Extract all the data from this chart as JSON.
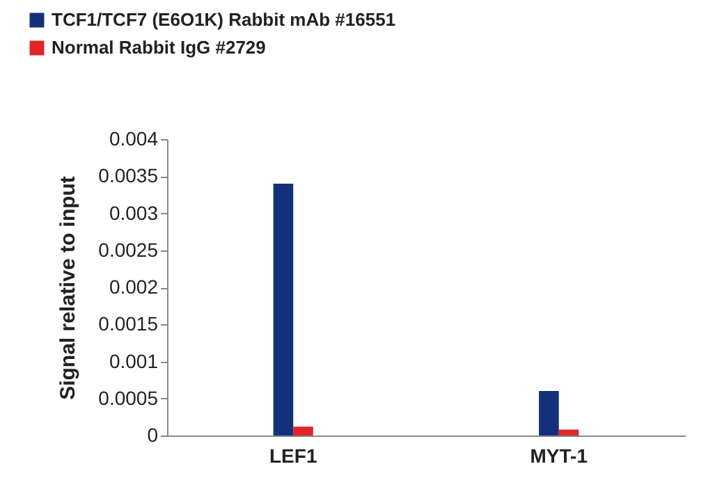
{
  "chart_data": {
    "type": "bar",
    "ylabel": "Signal relative to input",
    "categories": [
      "LEF1",
      "MYT-1"
    ],
    "series": [
      {
        "name": "TCF1/TCF7 (E6O1K) Rabbit mAb #16551",
        "color": "#13317b",
        "values": [
          0.0034,
          0.0006
        ]
      },
      {
        "name": "Normal Rabbit IgG #2729",
        "color": "#e0262b",
        "values": [
          0.00012,
          8e-05
        ]
      }
    ],
    "ylim": [
      0,
      0.004
    ],
    "yticks": [
      0,
      0.0005,
      0.001,
      0.0015,
      0.002,
      0.0025,
      0.003,
      0.0035,
      0.004
    ],
    "legend": "top left",
    "grid": false
  }
}
